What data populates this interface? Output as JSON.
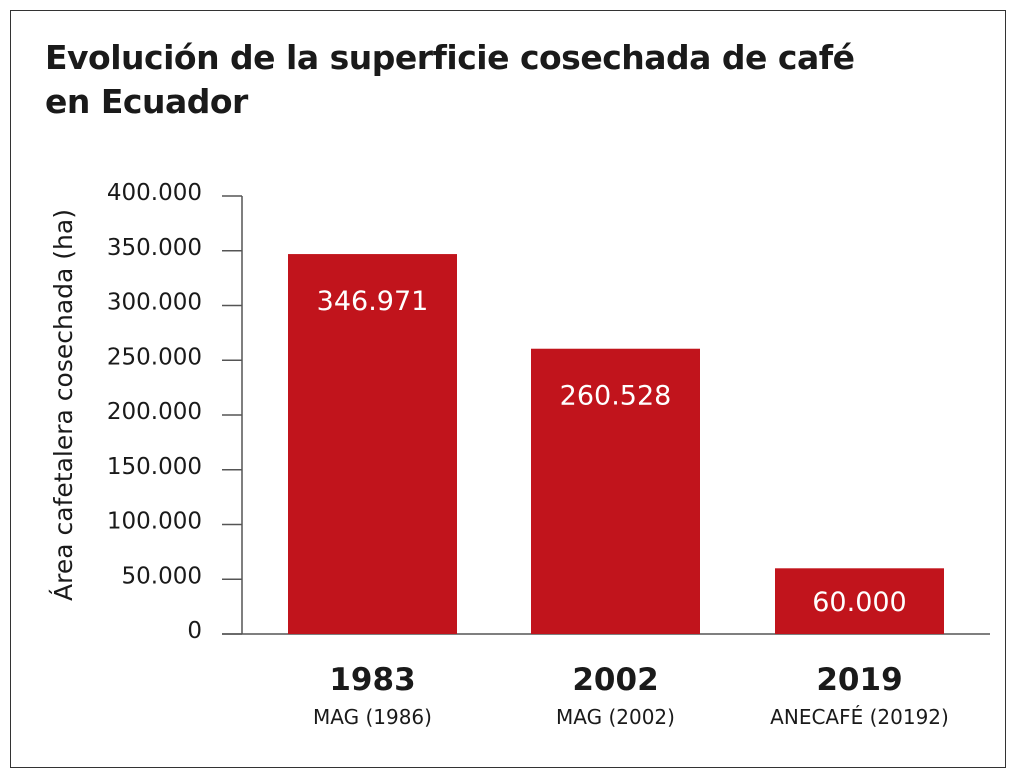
{
  "chart_data": {
    "type": "bar",
    "title_lines": [
      "Evolución de la superficie cosechada de café",
      "en Ecuador"
    ],
    "ylabel": "Área cafetalera cosechada (ha)",
    "xlabel": "",
    "ylim": [
      0,
      400000
    ],
    "yticks": [
      0,
      50000,
      100000,
      150000,
      200000,
      250000,
      300000,
      350000,
      400000
    ],
    "ytick_labels": [
      "0",
      "50.000",
      "100.000",
      "150.000",
      "200.000",
      "250.000",
      "300.000",
      "350.000",
      "400.000"
    ],
    "categories": [
      "1983",
      "2002",
      "2019"
    ],
    "sources": [
      "MAG (1986)",
      "MAG (2002)",
      "ANECAFÉ (20192)"
    ],
    "values": [
      346971,
      260528,
      60000
    ],
    "value_labels": [
      "346.971",
      "260.528",
      "60.000"
    ],
    "bar_color": "#c1141c",
    "grid": false
  }
}
